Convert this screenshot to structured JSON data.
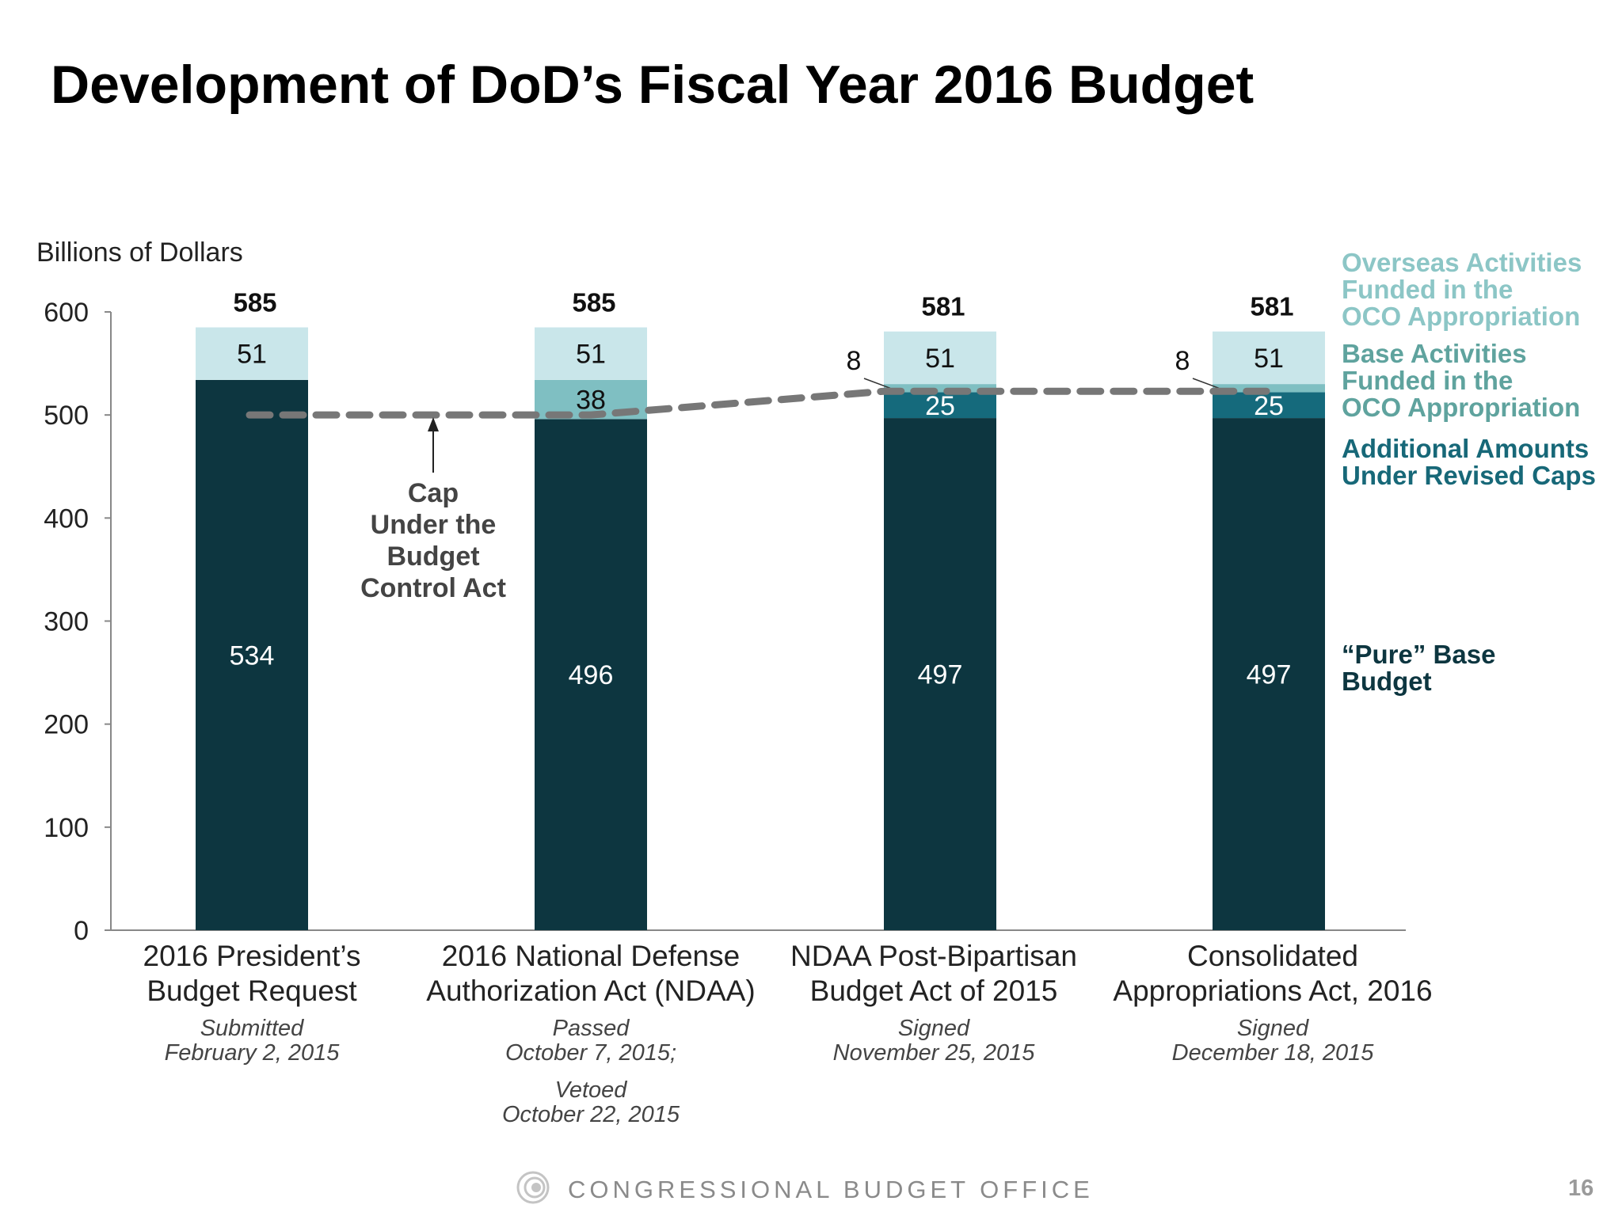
{
  "title": "Development of DoD’s Fiscal Year 2016 Budget",
  "footer": {
    "organization": "CONGRESSIONAL BUDGET OFFICE",
    "page_number": "16",
    "logo_icon": "cbo-logo-icon"
  },
  "chart_data": {
    "type": "bar",
    "stacked": true,
    "ylabel": "Billions of Dollars",
    "ylim": [
      0,
      600
    ],
    "yticks": [
      0,
      100,
      200,
      300,
      400,
      500,
      600
    ],
    "grid": false,
    "legend_placement": "right",
    "categories": [
      {
        "label": [
          "2016 President’s",
          "Budget Request"
        ],
        "note": [
          "Submitted",
          "February 2, 2015"
        ]
      },
      {
        "label": [
          "2016 National Defense",
          "Authorization Act (NDAA)"
        ],
        "note": [
          "Passed",
          "October 7, 2015;",
          "Vetoed",
          "October 22, 2015"
        ]
      },
      {
        "label": [
          "NDAA Post-Bipartisan",
          "Budget Act of 2015"
        ],
        "note": [
          "Signed",
          "November 25, 2015"
        ]
      },
      {
        "label": [
          "Consolidated",
          "Appropriations Act, 2016"
        ],
        "note": [
          "Signed",
          "December 18, 2015"
        ]
      }
    ],
    "totals": [
      585,
      585,
      581,
      581
    ],
    "series": [
      {
        "name": [
          "“Pure” Base",
          "Budget"
        ],
        "values": [
          534,
          496,
          497,
          497
        ],
        "color": "#0d3640",
        "label_color": "#0d3640"
      },
      {
        "name": [
          "Additional Amounts",
          "Under Revised Caps"
        ],
        "values": [
          0,
          0,
          25,
          25
        ],
        "color": "#156a7c",
        "label_color": "#176878"
      },
      {
        "name": [
          "Base Activities",
          "Funded in the",
          "OCO Appropriation"
        ],
        "values": [
          0,
          38,
          8,
          8
        ],
        "color": "#7fbfc2",
        "label_color": "#5fa39e"
      },
      {
        "name": [
          "Overseas Activities",
          "Funded in the",
          "OCO Appropriation"
        ],
        "values": [
          51,
          51,
          51,
          51
        ],
        "color": "#c9e6ea",
        "label_color": "#8cc6c6"
      }
    ],
    "cap_line": {
      "values": [
        500,
        500,
        523,
        523
      ],
      "color": "#777777",
      "style": "dashed"
    },
    "annotation": [
      "Cap",
      "Under the",
      "Budget",
      "Control Act"
    ]
  }
}
